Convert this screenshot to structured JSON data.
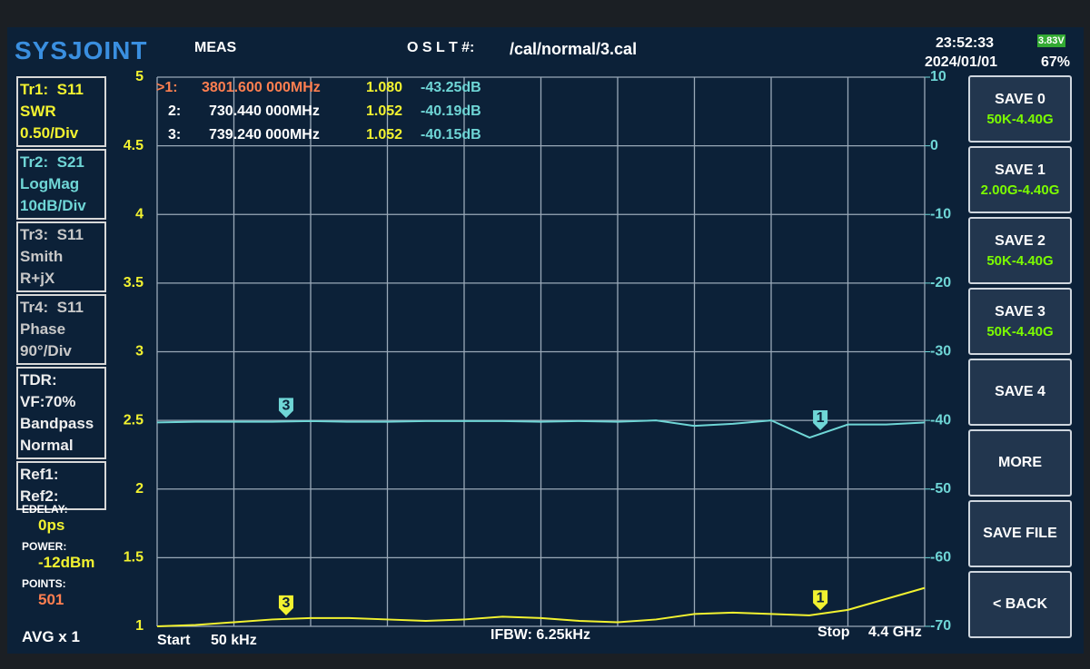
{
  "header": {
    "logo": "SYSJOINT",
    "menu": "MEAS",
    "cal_label": "O S L T #:",
    "cal_file": "/cal/normal/3.cal",
    "time": "23:52:33",
    "date": "2024/01/01",
    "battery_voltage": "3.83V",
    "battery_percent": "67%"
  },
  "markers": [
    {
      "id": ">1:",
      "frequency": "3801.600 000MHz",
      "swr": "1.080",
      "gain": "-43.25dB"
    },
    {
      "id": "2:",
      "frequency": "730.440 000MHz",
      "swr": "1.052",
      "gain": "-40.19dB"
    },
    {
      "id": "3:",
      "frequency": "739.240 000MHz",
      "swr": "1.052",
      "gain": "-40.15dB"
    }
  ],
  "trace_panel": [
    [
      "Tr1:  S11",
      "SWR",
      "0.50/Div"
    ],
    [
      "Tr2:  S21",
      "LogMag",
      "10dB/Div"
    ],
    [
      "Tr3:  S11",
      "Smith",
      "R+jX"
    ],
    [
      "Tr4:  S11",
      "Phase",
      "90°/Div"
    ],
    [
      "TDR:",
      "VF:70%",
      "Bandpass",
      "Normal"
    ],
    [
      "Ref1:",
      "Ref2:"
    ]
  ],
  "status": [
    {
      "label": "EDELAY:",
      "value": "0ps"
    },
    {
      "label": "POWER:",
      "value": "-12dBm"
    },
    {
      "label": "POINTS:",
      "value": "501"
    }
  ],
  "averaging": "AVG x 1",
  "footer": {
    "start_label": "Start",
    "start": "50 kHz",
    "ifbw": "IFBW: 6.25kHz",
    "stop_label": "Stop",
    "stop": "4.4 GHz"
  },
  "buttons": [
    {
      "label": "SAVE 0",
      "range": "50K-4.40G"
    },
    {
      "label": "SAVE 1",
      "range": "2.00G-4.40G"
    },
    {
      "label": "SAVE 2",
      "range": "50K-4.40G"
    },
    {
      "label": "SAVE 3",
      "range": "50K-4.40G"
    },
    {
      "label": "SAVE 4"
    },
    {
      "label": "MORE"
    },
    {
      "label": "SAVE FILE"
    },
    {
      "label": "< BACK"
    }
  ],
  "chart_data": {
    "type": "line",
    "x": [
      0.05,
      220,
      440,
      660,
      880,
      1100,
      1320,
      1540,
      1760,
      1980,
      2200,
      2420,
      2640,
      2860,
      3080,
      3300,
      3520,
      3740,
      3960,
      4180,
      4400
    ],
    "xlim": [
      0.05,
      4400
    ],
    "ylim": [
      1,
      5
    ],
    "yticks": [
      5,
      4.5,
      4,
      3.5,
      3,
      2.5,
      2,
      1.5,
      1
    ],
    "y2lim": [
      -70,
      10
    ],
    "y2ticks": [
      10,
      0,
      -10,
      -20,
      -30,
      -40,
      -50,
      -60,
      -70
    ],
    "grid": true,
    "series": [
      {
        "color": "#f2f230",
        "values": [
          1.0,
          1.01,
          1.03,
          1.05,
          1.06,
          1.06,
          1.05,
          1.04,
          1.05,
          1.07,
          1.06,
          1.04,
          1.03,
          1.05,
          1.09,
          1.1,
          1.09,
          1.08,
          1.12,
          1.2,
          1.28
        ]
      },
      {
        "color": "#6fd6d6",
        "axis": "y2",
        "values": [
          -40.3,
          -40.2,
          -40.2,
          -40.2,
          -40.1,
          -40.2,
          -40.2,
          -40.1,
          -40.1,
          -40.1,
          -40.2,
          -40.1,
          -40.2,
          -40.0,
          -40.8,
          -40.5,
          -40.0,
          -42.5,
          -40.6,
          -40.6,
          -40.3
        ]
      }
    ],
    "flags": [
      {
        "label": "3",
        "x": 739.24
      },
      {
        "label": "1",
        "x": 3801.6
      }
    ]
  }
}
